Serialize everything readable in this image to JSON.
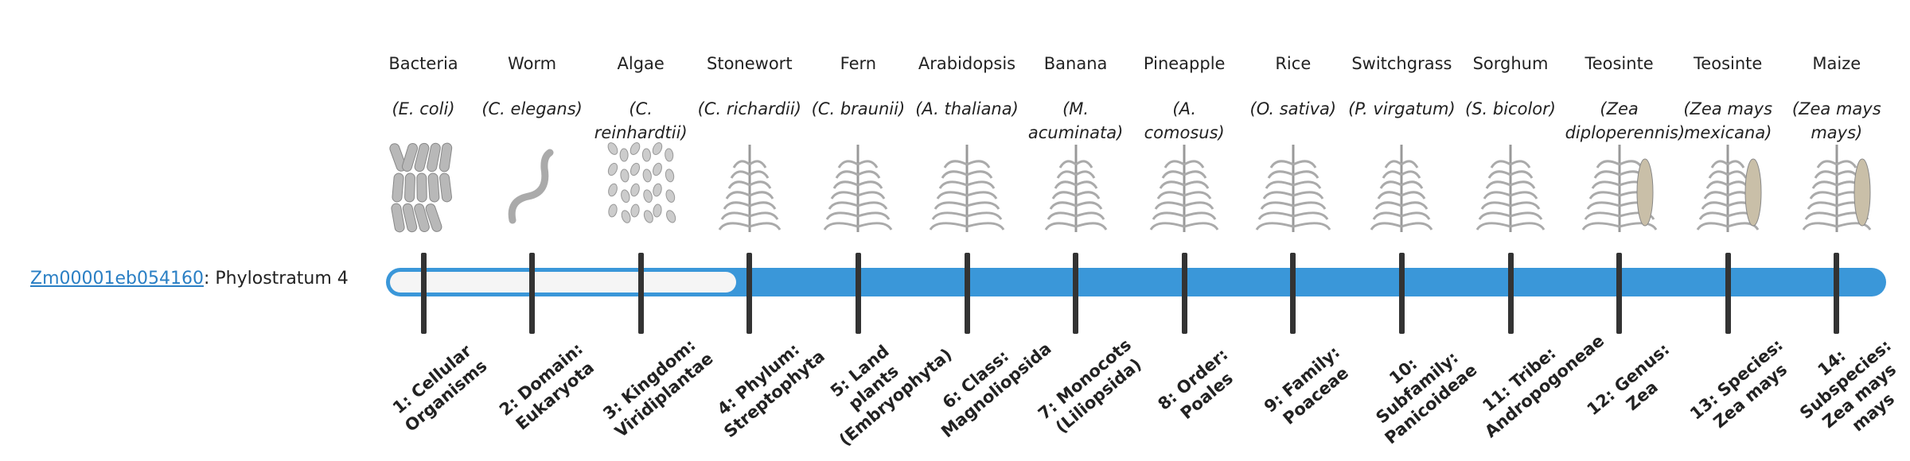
{
  "gene": {
    "id": "Zm00001eb054160",
    "suffix": ": Phylostratum 4"
  },
  "taxa": [
    {
      "common": "Bacteria",
      "scientific": "(E. coli)",
      "rank": "1: Cellular Organisms"
    },
    {
      "common": "Worm",
      "scientific": "(C. elegans)",
      "rank": "2: Domain: Eukaryota"
    },
    {
      "common": "Algae",
      "scientific": "(C. reinhardtii)",
      "rank": "3: Kingdom: Viridiplantae"
    },
    {
      "common": "Stonewort",
      "scientific": "(C. richardii)",
      "rank": "4: Phylum: Streptophyta"
    },
    {
      "common": "Fern",
      "scientific": "(C. braunii)",
      "rank": "5: Land plants (Embryophyta)"
    },
    {
      "common": "Arabidopsis",
      "scientific": "(A. thaliana)",
      "rank": "6: Class: Magnoliopsida"
    },
    {
      "common": "Banana",
      "scientific": "(M. acuminata)",
      "rank": "7: Monocots (Liliopsida)"
    },
    {
      "common": "Pineapple",
      "scientific": "(A. comosus)",
      "rank": "8: Order: Poales"
    },
    {
      "common": "Rice",
      "scientific": "(O. sativa)",
      "rank": "9: Family: Poaceae"
    },
    {
      "common": "Switchgrass",
      "scientific": "(P. virgatum)",
      "rank": "10: Subfamily: Panicoideae"
    },
    {
      "common": "Sorghum",
      "scientific": "(S. bicolor)",
      "rank": "11: Tribe: Andropogoneae"
    },
    {
      "common": "Teosinte",
      "scientific": "(Zea diploperennis)",
      "rank": "12: Genus: Zea"
    },
    {
      "common": "Teosinte",
      "scientific": "(Zea mays mexicana)",
      "rank": "13: Species: Zea mays"
    },
    {
      "common": "Maize",
      "scientific": "(Zea mays mays)",
      "rank": "14: Subspecies: Zea mays mays"
    }
  ]
}
